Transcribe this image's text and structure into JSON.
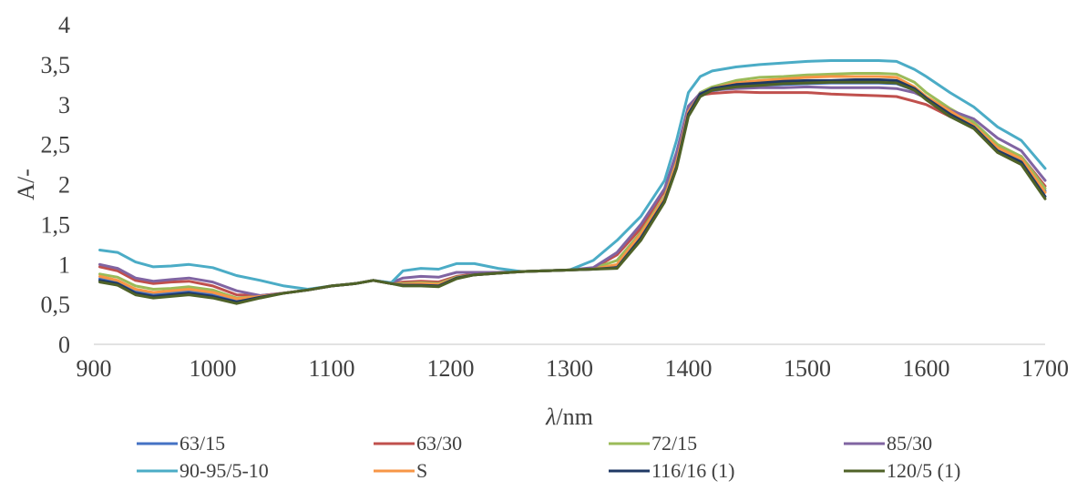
{
  "chart_data": {
    "type": "line",
    "xlabel_italic": "λ",
    "xlabel_rest": "/nm",
    "ylabel": "A/-",
    "xlim": [
      900,
      1700
    ],
    "ylim": [
      0,
      4
    ],
    "x_ticks": [
      "900",
      "1000",
      "1100",
      "1200",
      "1300",
      "1400",
      "1500",
      "1600",
      "1700"
    ],
    "y_ticks": [
      "0",
      "0,5",
      "1",
      "1,5",
      "2",
      "2,5",
      "3",
      "3,5",
      "4"
    ],
    "grid": false,
    "legend_position": "bottom",
    "x": [
      905,
      920,
      935,
      950,
      965,
      980,
      1000,
      1020,
      1040,
      1060,
      1080,
      1100,
      1120,
      1135,
      1150,
      1160,
      1175,
      1190,
      1205,
      1220,
      1240,
      1260,
      1280,
      1300,
      1320,
      1340,
      1360,
      1380,
      1390,
      1400,
      1410,
      1420,
      1440,
      1460,
      1480,
      1500,
      1520,
      1540,
      1560,
      1575,
      1590,
      1600,
      1620,
      1640,
      1660,
      1680,
      1700
    ],
    "series": [
      {
        "name": "63/15",
        "color": "#4472C4",
        "values": [
          0.82,
          0.78,
          0.66,
          0.62,
          0.64,
          0.66,
          0.63,
          0.56,
          0.6,
          0.64,
          0.68,
          0.73,
          0.76,
          0.8,
          0.76,
          0.75,
          0.75,
          0.74,
          0.83,
          0.87,
          0.89,
          0.91,
          0.92,
          0.93,
          0.94,
          0.97,
          1.35,
          1.82,
          2.25,
          2.9,
          3.12,
          3.17,
          3.22,
          3.24,
          3.25,
          3.26,
          3.27,
          3.27,
          3.27,
          3.26,
          3.18,
          3.08,
          2.9,
          2.72,
          2.45,
          2.3,
          1.92
        ]
      },
      {
        "name": "63/30",
        "color": "#C0504D",
        "values": [
          0.97,
          0.92,
          0.8,
          0.76,
          0.78,
          0.79,
          0.73,
          0.62,
          0.61,
          0.64,
          0.68,
          0.73,
          0.76,
          0.8,
          0.76,
          0.78,
          0.79,
          0.78,
          0.85,
          0.88,
          0.89,
          0.91,
          0.92,
          0.93,
          0.95,
          1.12,
          1.45,
          1.92,
          2.35,
          2.95,
          3.12,
          3.14,
          3.16,
          3.15,
          3.15,
          3.15,
          3.13,
          3.12,
          3.11,
          3.1,
          3.04,
          3.0,
          2.85,
          2.75,
          2.48,
          2.35,
          1.98
        ]
      },
      {
        "name": "72/15",
        "color": "#9BBB59",
        "values": [
          0.88,
          0.84,
          0.73,
          0.69,
          0.7,
          0.72,
          0.68,
          0.58,
          0.6,
          0.64,
          0.68,
          0.73,
          0.76,
          0.8,
          0.76,
          0.76,
          0.77,
          0.76,
          0.84,
          0.87,
          0.89,
          0.91,
          0.92,
          0.93,
          0.95,
          1.05,
          1.4,
          1.85,
          2.28,
          2.92,
          3.15,
          3.22,
          3.3,
          3.34,
          3.35,
          3.37,
          3.38,
          3.39,
          3.39,
          3.38,
          3.28,
          3.15,
          2.95,
          2.78,
          2.5,
          2.35,
          1.95
        ]
      },
      {
        "name": "85/30",
        "color": "#8064A2",
        "values": [
          1.0,
          0.95,
          0.83,
          0.79,
          0.81,
          0.83,
          0.78,
          0.67,
          0.61,
          0.64,
          0.68,
          0.73,
          0.76,
          0.8,
          0.77,
          0.83,
          0.85,
          0.84,
          0.9,
          0.9,
          0.9,
          0.91,
          0.92,
          0.93,
          0.96,
          1.15,
          1.5,
          1.95,
          2.4,
          2.98,
          3.14,
          3.18,
          3.2,
          3.21,
          3.21,
          3.22,
          3.21,
          3.21,
          3.21,
          3.2,
          3.15,
          3.08,
          2.93,
          2.82,
          2.58,
          2.42,
          2.05
        ]
      },
      {
        "name": "90-95/5-10",
        "color": "#4BACC6",
        "values": [
          1.18,
          1.15,
          1.03,
          0.97,
          0.98,
          1.0,
          0.96,
          0.86,
          0.8,
          0.73,
          0.69,
          0.73,
          0.76,
          0.8,
          0.77,
          0.92,
          0.95,
          0.94,
          1.01,
          1.01,
          0.95,
          0.91,
          0.92,
          0.93,
          1.05,
          1.3,
          1.6,
          2.05,
          2.55,
          3.15,
          3.35,
          3.42,
          3.47,
          3.5,
          3.52,
          3.54,
          3.55,
          3.55,
          3.55,
          3.54,
          3.44,
          3.35,
          3.15,
          2.97,
          2.72,
          2.55,
          2.2
        ]
      },
      {
        "name": "S",
        "color": "#F79646",
        "values": [
          0.85,
          0.8,
          0.69,
          0.65,
          0.67,
          0.69,
          0.65,
          0.57,
          0.6,
          0.64,
          0.68,
          0.73,
          0.76,
          0.8,
          0.76,
          0.75,
          0.76,
          0.75,
          0.83,
          0.87,
          0.89,
          0.91,
          0.92,
          0.93,
          0.94,
          1.0,
          1.38,
          1.83,
          2.27,
          2.91,
          3.13,
          3.2,
          3.27,
          3.3,
          3.32,
          3.34,
          3.35,
          3.35,
          3.35,
          3.34,
          3.22,
          3.1,
          2.92,
          2.74,
          2.46,
          2.32,
          1.9
        ]
      },
      {
        "name": "116/16 (1)",
        "color": "#1F3864",
        "values": [
          0.8,
          0.76,
          0.64,
          0.6,
          0.62,
          0.64,
          0.6,
          0.53,
          0.59,
          0.64,
          0.68,
          0.73,
          0.76,
          0.8,
          0.76,
          0.74,
          0.74,
          0.73,
          0.83,
          0.87,
          0.89,
          0.91,
          0.92,
          0.93,
          0.94,
          0.96,
          1.33,
          1.8,
          2.22,
          2.88,
          3.13,
          3.2,
          3.25,
          3.27,
          3.29,
          3.3,
          3.3,
          3.31,
          3.31,
          3.3,
          3.2,
          3.08,
          2.88,
          2.72,
          2.42,
          2.28,
          1.85
        ]
      },
      {
        "name": "120/5 (1)",
        "color": "#4F6228",
        "values": [
          0.78,
          0.74,
          0.62,
          0.58,
          0.6,
          0.62,
          0.58,
          0.51,
          0.58,
          0.64,
          0.68,
          0.73,
          0.76,
          0.8,
          0.76,
          0.73,
          0.73,
          0.72,
          0.82,
          0.87,
          0.89,
          0.91,
          0.92,
          0.93,
          0.94,
          0.95,
          1.3,
          1.78,
          2.2,
          2.85,
          3.1,
          3.18,
          3.22,
          3.24,
          3.26,
          3.27,
          3.28,
          3.28,
          3.28,
          3.27,
          3.18,
          3.06,
          2.85,
          2.7,
          2.4,
          2.25,
          1.82
        ]
      }
    ]
  }
}
